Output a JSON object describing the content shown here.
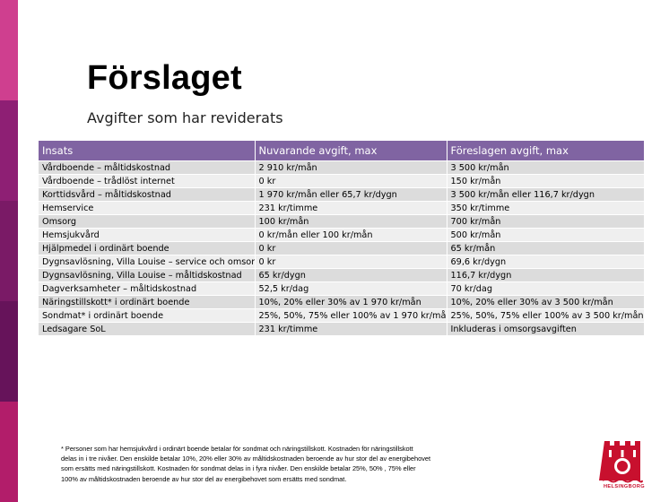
{
  "slide": {
    "title": "Förslaget",
    "subtitle": "Avgifter som har reviderats"
  },
  "colors": {
    "header_purple": "#8064a2",
    "row_dark": "#dcdcdc",
    "row_light": "#efefef",
    "logo_red": "#c8102e",
    "sidebar": [
      "#cf3f8f",
      "#99226e",
      "#7d1a60",
      "#6a1356",
      "#4f0c44"
    ]
  },
  "table": {
    "headers": [
      "Insats",
      "Nuvarande avgift, max",
      "Föreslagen avgift, max"
    ],
    "rows": [
      [
        "Vårdboende – måltidskostnad",
        "2 910 kr/mån",
        "3 500 kr/mån"
      ],
      [
        "Vårdboende – trådlöst internet",
        "0 kr",
        "150 kr/mån"
      ],
      [
        "Korttidsvård – måltidskostnad",
        "1 970 kr/mån eller 65,7 kr/dygn",
        "3 500 kr/mån eller 116,7 kr/dygn"
      ],
      [
        "Hemservice",
        "231 kr/timme",
        "350 kr/timme"
      ],
      [
        "Omsorg",
        "100 kr/mån",
        "700 kr/mån"
      ],
      [
        "Hemsjukvård",
        "0 kr/mån eller 100 kr/mån",
        "500 kr/mån"
      ],
      [
        "Hjälpmedel i ordinärt boende",
        "0 kr",
        "65 kr/mån"
      ],
      [
        "Dygnsavlösning, Villa Louise – service och omsorg",
        "0 kr",
        "69,6 kr/dygn"
      ],
      [
        "Dygnsavlösning, Villa Louise – måltidskostnad",
        "65 kr/dygn",
        "116,7 kr/dygn"
      ],
      [
        "Dagverksamheter – måltidskostnad",
        "52,5 kr/dag",
        "70 kr/dag"
      ],
      [
        "Näringstillskott* i ordinärt boende",
        "10%, 20% eller 30% av 1 970 kr/mån",
        "10%, 20% eller 30% av 3 500 kr/mån"
      ],
      [
        "Sondmat* i ordinärt boende",
        "25%, 50%, 75% eller 100% av 1 970 kr/mån",
        "25%, 50%, 75% eller 100% av 3 500 kr/mån"
      ],
      [
        "Ledsagare SoL",
        "231 kr/timme",
        "Inkluderas i omsorgsavgiften"
      ]
    ]
  },
  "footnote": {
    "lines": [
      "* Personer som har hemsjukvård i ordinärt boende betalar för sondmat och näringstillskott. Kostnaden för näringstillskott",
      "delas in i tre nivåer. Den enskilde betalar 10%, 20% eller 30% av måltidskostnaden beroende av hur stor del av energibehovet",
      "som ersätts med näringstillskott. Kostnaden för sondmat delas in i fyra nivåer. Den enskilde betalar 25%, 50% , 75% eller",
      "100% av måltidskostnaden beroende av hur stor del av energibehovet som ersätts med sondmat."
    ]
  },
  "logo": {
    "icon": "helsingborg-crest-icon",
    "text": "HELSINGBORG"
  }
}
